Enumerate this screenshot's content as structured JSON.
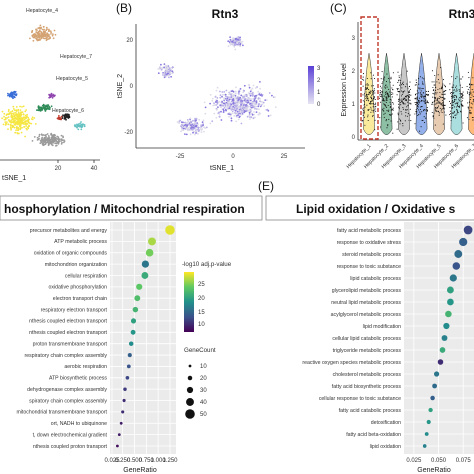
{
  "panels": {
    "b_label": "(B)",
    "c_label": "(C)",
    "e_label": "(E)"
  },
  "chart_data": [
    {
      "id": "A",
      "type": "scatter",
      "xlabel": "tSNE_1",
      "x_ticks": [
        "20",
        "40"
      ],
      "cluster_labels": [
        "Hepatocyte_4",
        "Hepatocyte_7",
        "Hepatocyte_5",
        "Hepatocyte_6"
      ]
    },
    {
      "id": "B",
      "type": "scatter",
      "title": "Rtn3",
      "xlabel": "tSNE_1",
      "ylabel": "tSNE_2",
      "x_ticks": [
        "-25",
        "0",
        "25"
      ],
      "y_ticks": [
        "20",
        "0",
        "-20"
      ],
      "colorbar_ticks": [
        "3",
        "2",
        "1",
        "0"
      ],
      "colorbar_colors": [
        "#d9d9e8",
        "#5a3fd6"
      ]
    },
    {
      "id": "C",
      "type": "violin",
      "title": "Rtn3",
      "ylabel": "Expression Level",
      "y_ticks": [
        "3",
        "2",
        "1",
        "0"
      ],
      "ylim": [
        0,
        3
      ],
      "categories": [
        "Hepatocyte_1",
        "Hepatocyte_2",
        "Hepatocyte_3",
        "Hepatocyte_4",
        "Hepatocyte_5",
        "Hepatocyte_6",
        "Hepatocyte_7"
      ],
      "highlight": "Hepatocyte_1"
    },
    {
      "id": "D",
      "type": "scatter",
      "title": "hosphorylation / Mitochondrial respiration",
      "xlabel": "GeneRatio",
      "x_ticks": [
        "0.025",
        "0.250",
        "0.500",
        "0.750",
        "1.000",
        "1.250"
      ],
      "xlim": [
        0.025,
        1.25
      ],
      "categories": [
        "precursor metabolites and energy",
        "ATP metabolic process",
        "oxidation of organic compounds",
        "mitochondrion organization",
        "cellular respiration",
        "oxidative phosphorylation",
        "electron transport chain",
        "respiratory electron transport",
        "nthesis coupled electron transport",
        "nthesis coupled electron transport",
        "proton transmembrane transport",
        "respiratory chain complex assembly",
        "aerobic respiration",
        "ATP biosynthetic process",
        "dehydrogenase complex assembly",
        "spiratory chain complex assembly",
        "mitochondrial transmembrane transport",
        "ort, NADH to ubiquinone",
        "t, down electrochemical gradient",
        "nthesis coupled proton transport"
      ],
      "x": [
        1.25,
        0.87,
        0.82,
        0.73,
        0.72,
        0.6,
        0.56,
        0.52,
        0.48,
        0.47,
        0.43,
        0.4,
        0.38,
        0.35,
        0.3,
        0.28,
        0.25,
        0.22,
        0.18,
        0.14
      ],
      "neglog10p": [
        27,
        25,
        23,
        14,
        19,
        22,
        21,
        20,
        18,
        17,
        16,
        12,
        11,
        10,
        9,
        8,
        8,
        7,
        7,
        6
      ],
      "size": [
        50,
        40,
        38,
        36,
        34,
        30,
        28,
        26,
        24,
        22,
        20,
        18,
        16,
        15,
        14,
        12,
        12,
        10,
        10,
        10
      ],
      "legend_color_title": "-log10 adj.p-value",
      "legend_color_ticks": [
        "25",
        "20",
        "15",
        "10"
      ],
      "legend_size_title": "GeneCount",
      "legend_size_ticks": [
        "10",
        "20",
        "30",
        "40",
        "50"
      ]
    },
    {
      "id": "E",
      "type": "scatter",
      "title": "Lipid oxidation / Oxidative s",
      "xlabel": "GeneRatio",
      "x_ticks": [
        "0.025",
        "0.050",
        "0.075"
      ],
      "xlim": [
        0.015,
        0.09
      ],
      "categories": [
        "fatty acid metabolic process",
        "response to oxidative stress",
        "steroid metabolic process",
        "response to toxic substance",
        "lipid catabolic process",
        "glycerolipid metabolic process",
        "neutral lipid metabolic process",
        "acylglycerol metabolic process",
        "lipid modification",
        "cellular lipid catabolic process",
        "triglyceride metabolic process",
        "reactive oxygen species metabolic process",
        "cholesterol metabolic process",
        "fatty acid biosynthetic process",
        "cellular response to toxic substance",
        "fatty acid catabolic process",
        "detoxification",
        "fatty acid beta-oxidation",
        "lipid oxidation"
      ],
      "x": [
        0.08,
        0.075,
        0.07,
        0.068,
        0.065,
        0.062,
        0.062,
        0.06,
        0.058,
        0.056,
        0.054,
        0.052,
        0.048,
        0.046,
        0.044,
        0.042,
        0.04,
        0.038,
        0.036
      ],
      "neglog10p": [
        10,
        12,
        13,
        11,
        14,
        18,
        17,
        20,
        16,
        15,
        19,
        8,
        14,
        13,
        12,
        18,
        17,
        16,
        15
      ],
      "size": [
        45,
        42,
        40,
        38,
        36,
        34,
        33,
        32,
        30,
        28,
        27,
        26,
        24,
        22,
        20,
        19,
        18,
        16,
        15
      ]
    }
  ]
}
